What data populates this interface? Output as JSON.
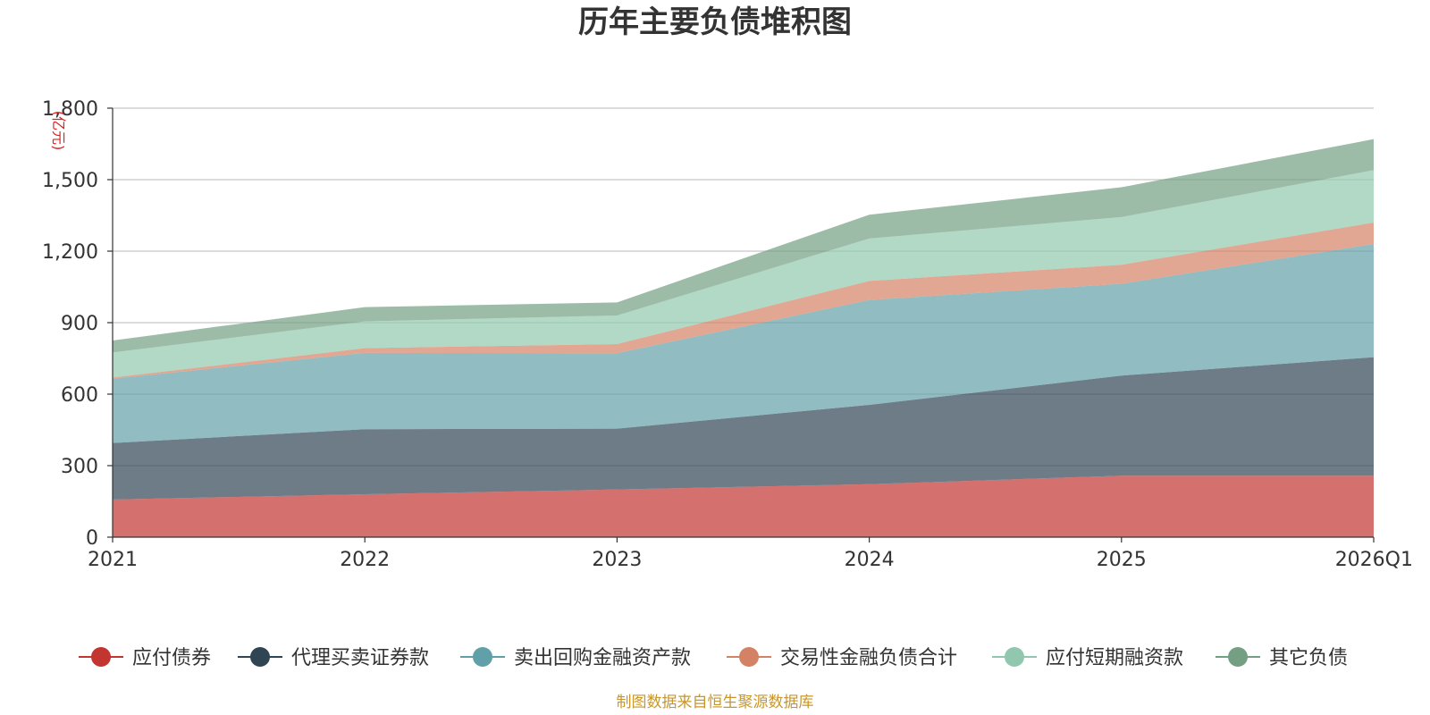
{
  "chart_data": {
    "type": "area",
    "stacked": true,
    "title": "历年主要负债堆积图",
    "unit_label": "(亿元)",
    "categories": [
      "2021",
      "2022",
      "2023",
      "2024",
      "2025",
      "2026Q1"
    ],
    "ylim": [
      0,
      1800
    ],
    "yticks": [
      0,
      300,
      600,
      900,
      1200,
      1500,
      1800
    ],
    "ytick_labels": [
      "0",
      "300",
      "600",
      "900",
      "1,200",
      "1,500",
      "1,800"
    ],
    "series": [
      {
        "name": "应付债券",
        "color": "#c23531",
        "values": [
          158,
          180,
          200,
          222,
          258,
          258
        ]
      },
      {
        "name": "代理买卖证券款",
        "color": "#2f4554",
        "values": [
          237,
          273,
          255,
          333,
          420,
          497
        ]
      },
      {
        "name": "卖出回购金融资产款",
        "color": "#61a0a8",
        "values": [
          270,
          320,
          317,
          440,
          385,
          475
        ]
      },
      {
        "name": "交易性金融负债合计",
        "color": "#d48265",
        "values": [
          5,
          20,
          38,
          80,
          80,
          90
        ]
      },
      {
        "name": "应付短期融资款",
        "color": "#91c7ae",
        "values": [
          105,
          112,
          120,
          178,
          200,
          220
        ]
      },
      {
        "name": "其它负债",
        "color": "#749f83",
        "values": [
          50,
          60,
          55,
          100,
          125,
          130
        ]
      }
    ]
  },
  "source_text": "制图数据来自恒生聚源数据库",
  "colors": {
    "source": "#c9962a",
    "unit": "#e02020",
    "grid": "#c8c8c8",
    "axis": "#333333"
  }
}
